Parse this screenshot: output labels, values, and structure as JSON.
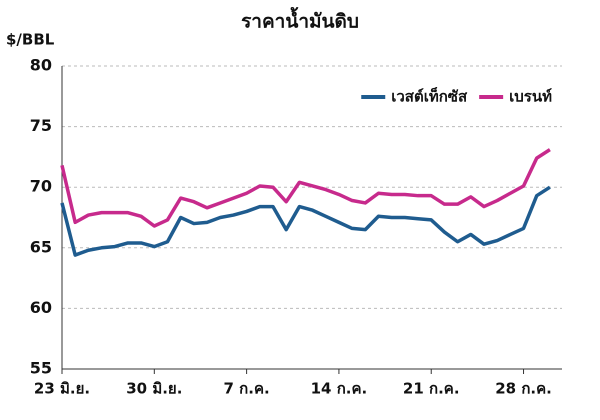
{
  "chart_data": {
    "type": "line",
    "title": "ราคาน้ำมันดิบ",
    "y_label": "$/BBL",
    "categories": [
      "23 มิ.ย.",
      null,
      null,
      null,
      null,
      null,
      null,
      "30 มิ.ย.",
      null,
      null,
      null,
      null,
      null,
      null,
      "7 ก.ค.",
      null,
      null,
      null,
      null,
      null,
      null,
      "14 ก.ค.",
      null,
      null,
      null,
      null,
      null,
      null,
      "21 ก.ค.",
      null,
      null,
      null,
      null,
      null,
      null,
      "28 ก.ค.",
      null,
      null
    ],
    "series": [
      {
        "name": "เวสต์เท็กซัส",
        "color": "#1f5c8f",
        "values": [
          68.7,
          64.4,
          64.8,
          65.0,
          65.1,
          65.4,
          65.4,
          65.1,
          65.5,
          67.5,
          67.0,
          67.1,
          67.5,
          67.7,
          68.0,
          68.4,
          68.4,
          66.5,
          68.4,
          68.1,
          67.6,
          67.1,
          66.6,
          66.5,
          67.6,
          67.5,
          67.5,
          67.4,
          67.3,
          66.3,
          65.5,
          66.1,
          65.3,
          65.6,
          66.1,
          66.6,
          69.3,
          70.0
        ]
      },
      {
        "name": "เบรนท์",
        "color": "#c72a8c",
        "values": [
          71.8,
          67.1,
          67.7,
          67.9,
          67.9,
          67.9,
          67.6,
          66.8,
          67.3,
          69.1,
          68.8,
          68.3,
          68.7,
          69.1,
          69.5,
          70.1,
          70.0,
          68.8,
          70.4,
          70.1,
          69.8,
          69.4,
          68.9,
          68.7,
          69.5,
          69.4,
          69.4,
          69.3,
          69.3,
          68.6,
          68.6,
          69.2,
          68.4,
          68.9,
          69.5,
          70.1,
          72.4,
          73.1
        ]
      }
    ],
    "ylim": [
      55,
      80
    ],
    "yticks": [
      55,
      60,
      65,
      70,
      75,
      80
    ],
    "grid": true,
    "legend": "top-right"
  }
}
